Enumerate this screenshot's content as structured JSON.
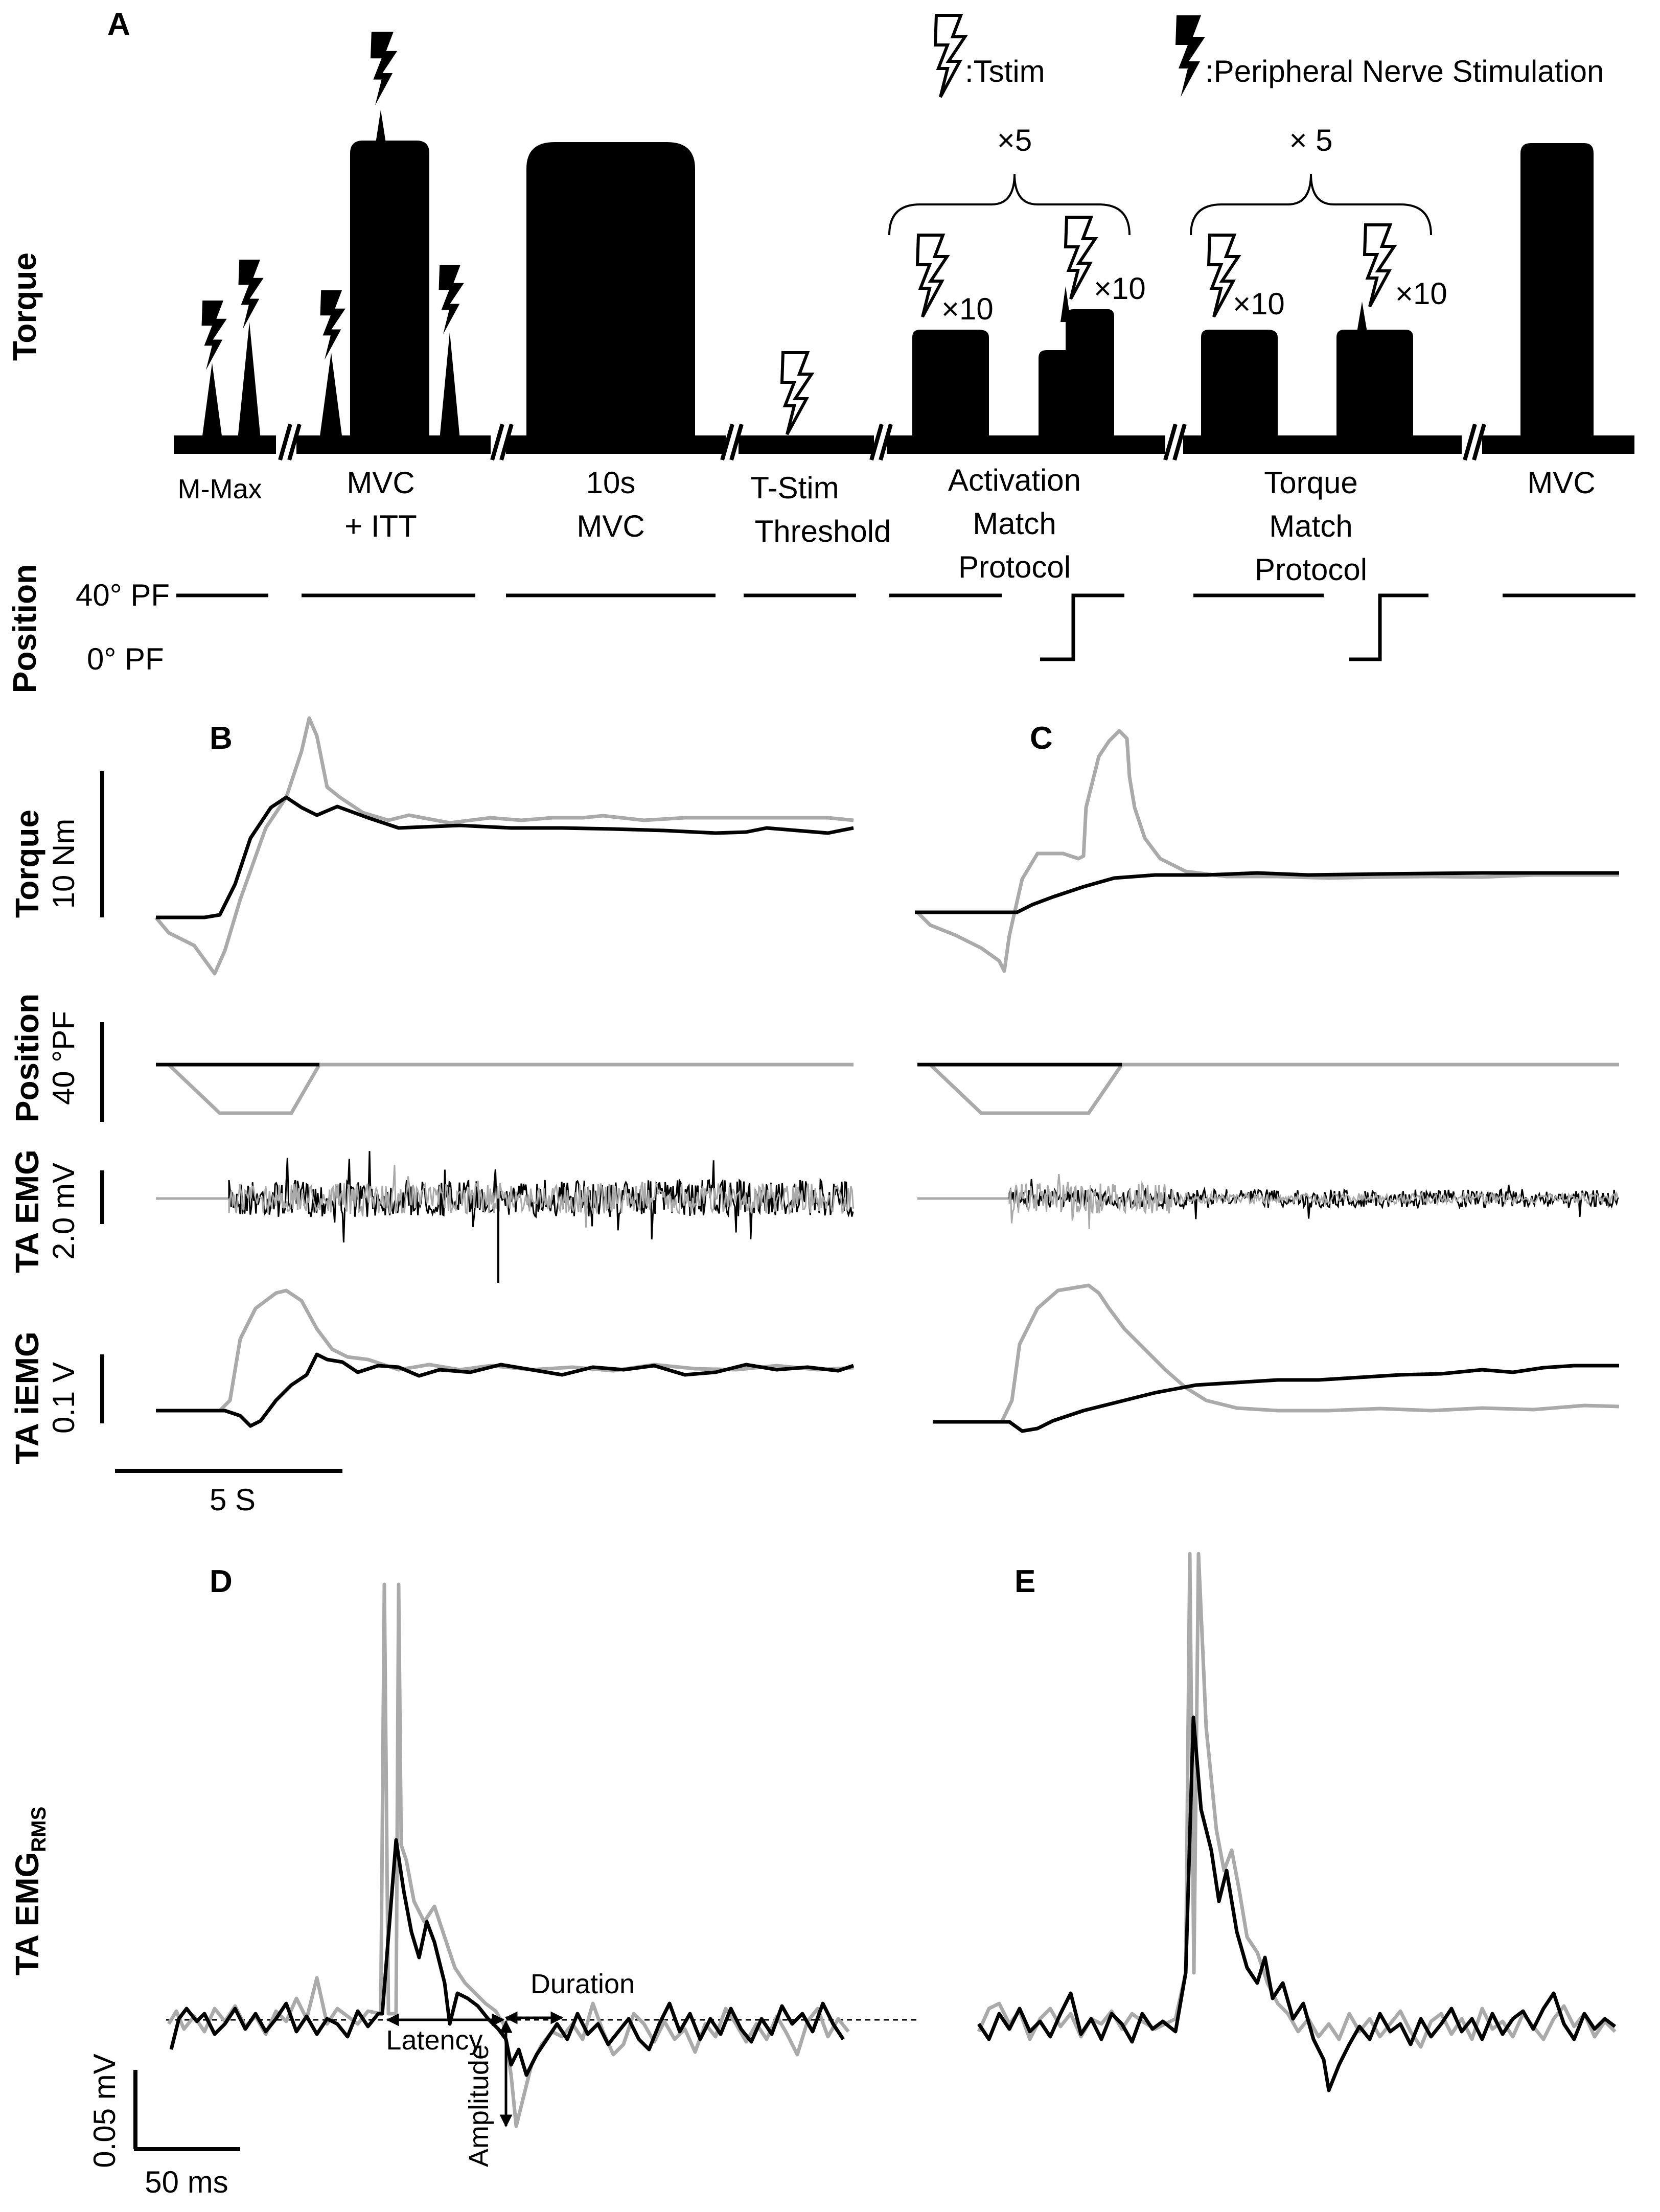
{
  "colors": {
    "dark": "#000000",
    "gray": "#aaaaaa"
  },
  "panel_a": {
    "label": "A",
    "legend": {
      "tstim": ":Tstim",
      "peripheral": ":Peripheral Nerve Stimulation"
    },
    "y_labels": {
      "torque": "Torque",
      "position": "Position"
    },
    "position_levels": {
      "top": "40° PF",
      "bottom": "0° PF"
    },
    "repeat_activation": "×5",
    "repeat_torque": "× 5",
    "stim_count": "×10",
    "phases": {
      "mmax": "M-Max",
      "mvc_itt_1": "MVC",
      "mvc_itt_2": "+ ITT",
      "mvc10_1": "10s",
      "mvc10_2": "MVC",
      "tstim_1": "T-Stim",
      "tstim_2": "Threshold",
      "act_1": "Activation",
      "act_2": "Match",
      "act_3": "Protocol",
      "tq_1": "Torque",
      "tq_2": "Match",
      "tq_3": "Protocol",
      "final_mvc": "MVC"
    }
  },
  "panel_b": {
    "label": "B"
  },
  "panel_c": {
    "label": "C"
  },
  "traces": {
    "torque": {
      "name": "Torque",
      "unit": "10 Nm"
    },
    "position": {
      "name": "Position",
      "unit": "40 °PF"
    },
    "ta_emg": {
      "name": "TA EMG",
      "unit": "2.0 mV"
    },
    "ta_iemg": {
      "name": "TA iEMG",
      "unit": "0.1 V"
    },
    "time_scale": "5 S"
  },
  "panel_d": {
    "label": "D",
    "y_label_main": "TA EMG",
    "y_label_sub": "RMS",
    "annotations": {
      "latency": "Latency",
      "duration": "Duration",
      "amplitude": "Amplitude"
    },
    "scale_y": "0.05 mV",
    "scale_x": "50 ms"
  },
  "panel_e": {
    "label": "E"
  }
}
